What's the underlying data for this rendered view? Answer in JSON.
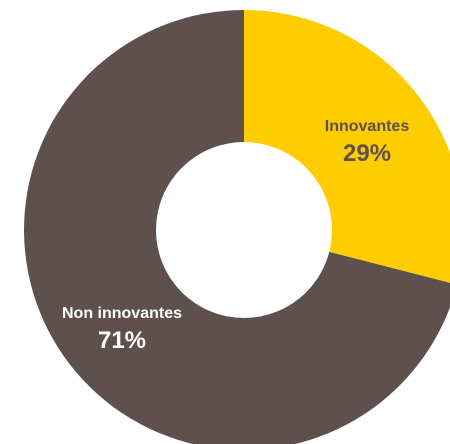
{
  "chart_data": {
    "type": "pie",
    "donut": true,
    "slices": [
      {
        "label": "Innovantes",
        "value": 29,
        "value_label": "29%",
        "color": "#FFCC00",
        "text_color": "#5E514D"
      },
      {
        "label": "Non innovantes",
        "value": 71,
        "value_label": "71%",
        "color": "#5E514D",
        "text_color": "#FFFFFF"
      }
    ]
  }
}
